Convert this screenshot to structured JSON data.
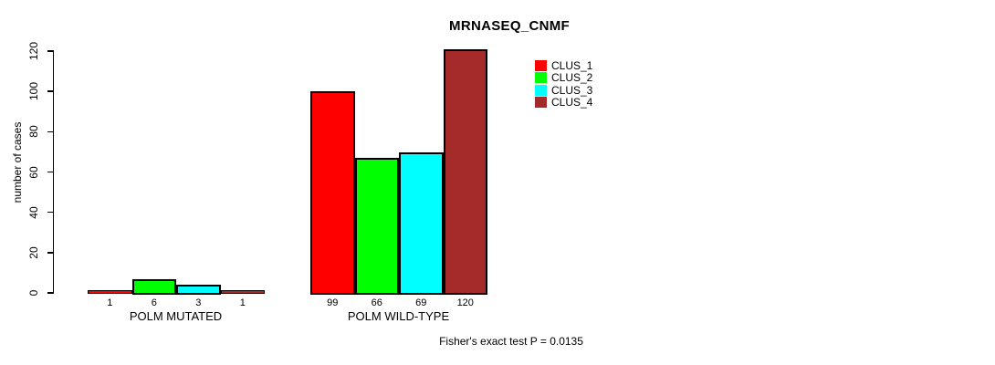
{
  "chart_data": {
    "type": "bar",
    "title": "MRNASEQ_CNMF",
    "ylabel": "number of cases",
    "xlabel": "",
    "ylim": [
      0,
      120
    ],
    "yticks": [
      0,
      20,
      40,
      60,
      80,
      100,
      120
    ],
    "grid": false,
    "legend_position": "top-right",
    "bar_border_color": "#000000",
    "series": [
      {
        "name": "CLUS_1",
        "color": "#ff0000"
      },
      {
        "name": "CLUS_2",
        "color": "#00ff00"
      },
      {
        "name": "CLUS_3",
        "color": "#00ffff"
      },
      {
        "name": "CLUS_4",
        "color": "#a52a2a"
      }
    ],
    "groups": [
      {
        "label": "POLM MUTATED",
        "values": [
          1,
          6,
          3,
          1
        ]
      },
      {
        "label": "POLM WILD-TYPE",
        "values": [
          99,
          66,
          69,
          120
        ]
      }
    ],
    "value_labels_shown": true,
    "annotation": "Fisher's exact test P = 0.0135"
  }
}
